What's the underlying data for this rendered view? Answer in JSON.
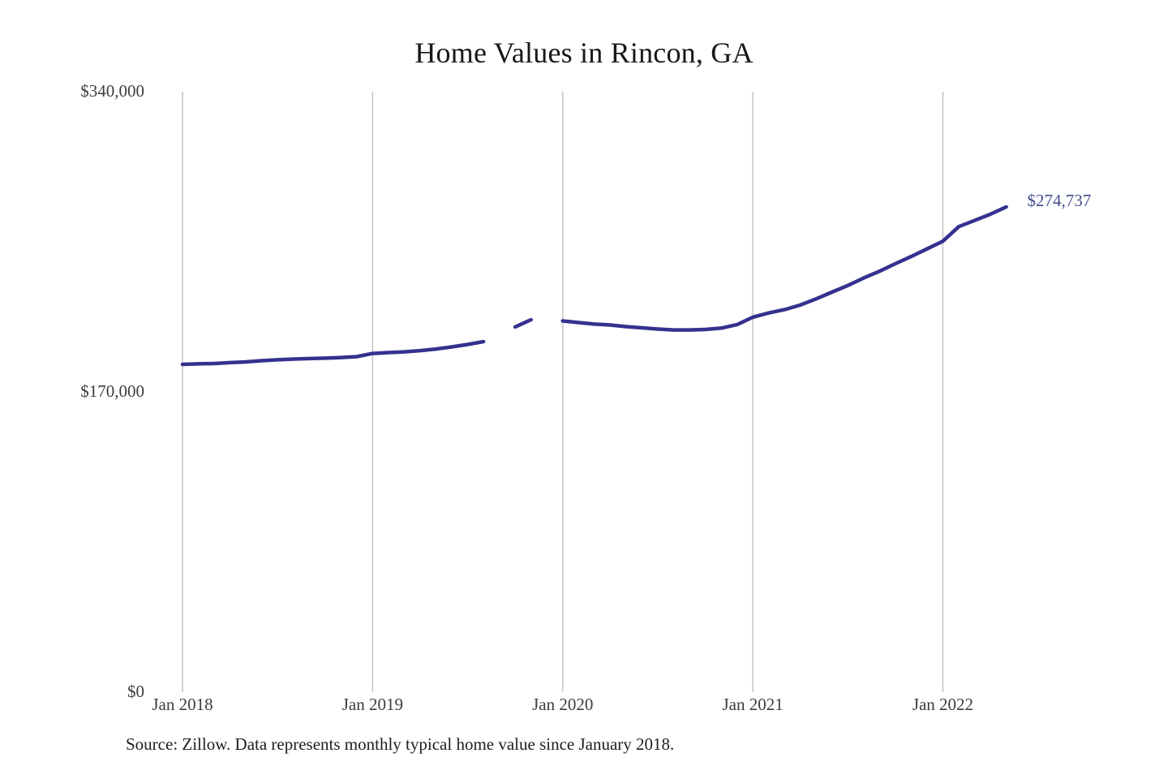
{
  "chart_data": {
    "type": "line",
    "title": "Home Values in Rincon, GA",
    "source": "Source: Zillow. Data represents monthly typical home value since January 2018.",
    "end_label": "$274,737",
    "xlabel": "",
    "ylabel": "",
    "ylim": [
      0,
      340000
    ],
    "grid": "vertical-only",
    "legend": "none",
    "colors": {
      "line": "#34318f",
      "end_label": "#434c8c",
      "grid": "#c4c4c4",
      "axis_text": "#3d3d3d",
      "title_text": "#17171c"
    },
    "y_ticks": [
      {
        "value": 0,
        "label": "$0"
      },
      {
        "value": 170000,
        "label": "$170,000"
      },
      {
        "value": 340000,
        "label": "$340,000"
      }
    ],
    "x_ticks": [
      {
        "month_index": 0,
        "label": "Jan 2018"
      },
      {
        "month_index": 12,
        "label": "Jan 2019"
      },
      {
        "month_index": 24,
        "label": "Jan 2020"
      },
      {
        "month_index": 36,
        "label": "Jan 2021"
      },
      {
        "month_index": 48,
        "label": "Jan 2022"
      }
    ],
    "x": [
      "Jan 2018",
      "Feb 2018",
      "Mar 2018",
      "Apr 2018",
      "May 2018",
      "Jun 2018",
      "Jul 2018",
      "Aug 2018",
      "Sep 2018",
      "Oct 2018",
      "Nov 2018",
      "Dec 2018",
      "Jan 2019",
      "Feb 2019",
      "Mar 2019",
      "Apr 2019",
      "May 2019",
      "Jun 2019",
      "Jul 2019",
      "Aug 2019",
      "Sep 2019",
      "Oct 2019",
      "Nov 2019",
      "Dec 2019",
      "Jan 2020",
      "Feb 2020",
      "Mar 2020",
      "Apr 2020",
      "May 2020",
      "Jun 2020",
      "Jul 2020",
      "Aug 2020",
      "Sep 2020",
      "Oct 2020",
      "Nov 2020",
      "Dec 2020",
      "Jan 2021",
      "Feb 2021",
      "Mar 2021",
      "Apr 2021",
      "May 2021",
      "Jun 2021",
      "Jul 2021",
      "Aug 2021",
      "Sep 2021",
      "Oct 2021",
      "Nov 2021",
      "Dec 2021",
      "Jan 2022",
      "Feb 2022",
      "Mar 2022",
      "Apr 2022",
      "May 2022"
    ],
    "values": [
      185600,
      185900,
      186100,
      186600,
      187000,
      187700,
      188200,
      188600,
      188900,
      189100,
      189500,
      190000,
      191800,
      192300,
      192700,
      193400,
      194300,
      195500,
      196900,
      198500,
      null,
      206800,
      210900,
      null,
      210200,
      209300,
      208400,
      207900,
      207000,
      206300,
      205600,
      205100,
      205100,
      205400,
      206100,
      208100,
      212300,
      214700,
      216600,
      219200,
      222700,
      226500,
      230300,
      234500,
      238300,
      242600,
      246700,
      251000,
      255300,
      263600,
      267100,
      270600,
      274737
    ]
  }
}
